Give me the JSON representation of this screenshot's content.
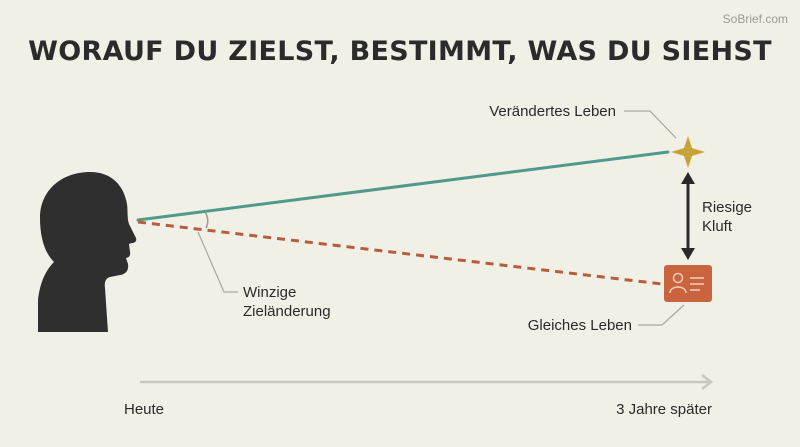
{
  "title": "WORAUF DU ZIELST, BESTIMMT, WAS DU SIEHST",
  "watermark": "SoBrief.com",
  "labels": {
    "changed_life": "Verändertes Leben",
    "huge_gap_line1": "Riesige",
    "huge_gap_line2": "Kluft",
    "tiny_change_line1": "Winzige",
    "tiny_change_line2": "Zieländerung",
    "same_life": "Gleiches Leben",
    "today": "Heute",
    "three_years": "3 Jahre später"
  },
  "icons": {
    "head": "head-silhouette-icon",
    "star": "star-icon",
    "card": "id-card-icon"
  },
  "colors": {
    "background": "#f1f0e6",
    "head": "#2f2f2f",
    "changed_path": "#4f9a8c",
    "same_path": "#b55d3c",
    "star": "#c9a33a",
    "card": "#c9643e",
    "arrow": "#2a2a2a",
    "timeline": "#c8c8c0",
    "leader": "#9a9a92"
  }
}
